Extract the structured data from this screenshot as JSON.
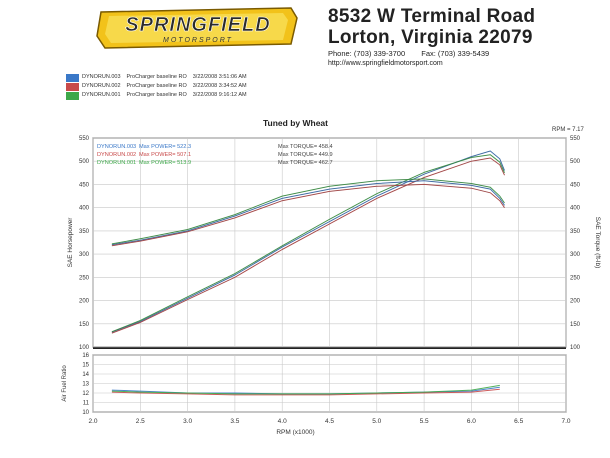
{
  "header": {
    "logo_text": "SPRINGFIELD",
    "logo_sub": "MOTORSPORT",
    "address_line1": "8532 W Terminal Road",
    "address_line2": "Lorton, Virginia 22079",
    "phone": "Phone: (703) 339-3700",
    "fax": "Fax: (703) 339-5439",
    "website": "http://www.springfieldmotorsport.com"
  },
  "legend": [
    {
      "run": "DYNORUN.003",
      "desc": "ProCharger baseline RO",
      "date": "3/22/2008 3:51:06 AM",
      "color": "#3a78c8"
    },
    {
      "run": "DYNORUN.002",
      "desc": "ProCharger baseline RO",
      "date": "3/22/2008 3:34:52 AM",
      "color": "#c84a4a"
    },
    {
      "run": "DYNORUN.001",
      "desc": "ProCharger baseline RO",
      "date": "3/22/2008 9:16:12 AM",
      "color": "#3ea84a"
    }
  ],
  "annotations": [
    {
      "run": "DYNORUN.003",
      "power": "Max POWER= 522.3",
      "torque": "Max TORQUE= 458.4",
      "color": "#3a78c8"
    },
    {
      "run": "DYNORUN.002",
      "power": "Max POWER= 507.1",
      "torque": "Max TORQUE= 449.9",
      "color": "#c84a4a"
    },
    {
      "run": "DYNORUN.001",
      "power": "Max POWER= 513.9",
      "torque": "Max TORQUE= 462.7",
      "color": "#3ea84a"
    }
  ],
  "chart_data": [
    {
      "type": "line",
      "title": "Tuned by Wheat",
      "ylabel": "SAE Horsepower",
      "y2label": "SAE Torque (ft-lb)",
      "rpm_marker": "RPM = 7.17",
      "xlim": [
        2.0,
        7.0
      ],
      "ylim": [
        100,
        550
      ],
      "y_ticks": [
        100,
        150,
        200,
        250,
        300,
        350,
        400,
        450,
        500,
        550
      ],
      "series": [
        {
          "kind": "power",
          "color": "#3a78c8",
          "x": [
            2.2,
            2.5,
            3.0,
            3.5,
            4.0,
            4.5,
            5.0,
            5.5,
            6.0,
            6.2,
            6.3,
            6.35
          ],
          "y": [
            132,
            155,
            205,
            255,
            315,
            370,
            425,
            472,
            510,
            522,
            505,
            480
          ]
        },
        {
          "kind": "power",
          "color": "#c84a4a",
          "x": [
            2.2,
            2.5,
            3.0,
            3.5,
            4.0,
            4.5,
            5.0,
            5.5,
            6.0,
            6.2,
            6.3,
            6.35
          ],
          "y": [
            130,
            153,
            202,
            250,
            310,
            365,
            420,
            465,
            500,
            507,
            492,
            470
          ]
        },
        {
          "kind": "power",
          "color": "#3ea84a",
          "x": [
            2.2,
            2.5,
            3.0,
            3.5,
            4.0,
            4.5,
            5.0,
            5.5,
            6.0,
            6.2,
            6.3,
            6.35
          ],
          "y": [
            133,
            157,
            208,
            258,
            318,
            375,
            430,
            476,
            508,
            514,
            498,
            475
          ]
        },
        {
          "kind": "torque",
          "color": "#3a78c8",
          "x": [
            2.2,
            2.5,
            3.0,
            3.5,
            4.0,
            4.5,
            5.0,
            5.5,
            6.0,
            6.2,
            6.3,
            6.35
          ],
          "y": [
            320,
            330,
            350,
            382,
            420,
            440,
            452,
            458,
            448,
            440,
            420,
            405
          ]
        },
        {
          "kind": "torque",
          "color": "#c84a4a",
          "x": [
            2.2,
            2.5,
            3.0,
            3.5,
            4.0,
            4.5,
            5.0,
            5.5,
            6.0,
            6.2,
            6.3,
            6.35
          ],
          "y": [
            318,
            328,
            348,
            378,
            415,
            435,
            446,
            450,
            442,
            432,
            415,
            400
          ]
        },
        {
          "kind": "torque",
          "color": "#3ea84a",
          "x": [
            2.2,
            2.5,
            3.0,
            3.5,
            4.0,
            4.5,
            5.0,
            5.5,
            6.0,
            6.2,
            6.3,
            6.35
          ],
          "y": [
            322,
            333,
            353,
            385,
            425,
            446,
            458,
            462,
            452,
            444,
            425,
            410
          ]
        }
      ]
    },
    {
      "type": "line",
      "ylabel": "Air Fuel Ratio",
      "xlabel": "RPM (x1000)",
      "xlim": [
        2.0,
        7.0
      ],
      "ylim": [
        10,
        16
      ],
      "x_ticks": [
        "2.0",
        "2.5",
        "3.0",
        "3.5",
        "4.0",
        "4.5",
        "5.0",
        "5.5",
        "6.0",
        "6.5",
        "7.0"
      ],
      "y_ticks": [
        10,
        11,
        12,
        13,
        14,
        15,
        16
      ],
      "series": [
        {
          "color": "#3a78c8",
          "x": [
            2.2,
            2.5,
            3.0,
            3.5,
            4.0,
            4.5,
            5.0,
            5.5,
            6.0,
            6.3
          ],
          "y": [
            12.3,
            12.2,
            12.0,
            12.0,
            11.9,
            11.9,
            12.0,
            12.1,
            12.2,
            12.6
          ]
        },
        {
          "color": "#c84a4a",
          "x": [
            2.2,
            2.5,
            3.0,
            3.5,
            4.0,
            4.5,
            5.0,
            5.5,
            6.0,
            6.3
          ],
          "y": [
            12.1,
            12.0,
            11.9,
            11.8,
            11.8,
            11.8,
            11.9,
            12.0,
            12.1,
            12.4
          ]
        },
        {
          "color": "#3ea84a",
          "x": [
            2.2,
            2.5,
            3.0,
            3.5,
            4.0,
            4.5,
            5.0,
            5.5,
            6.0,
            6.3
          ],
          "y": [
            12.2,
            12.1,
            12.0,
            11.9,
            11.9,
            11.9,
            12.0,
            12.1,
            12.3,
            12.8
          ]
        }
      ]
    }
  ]
}
